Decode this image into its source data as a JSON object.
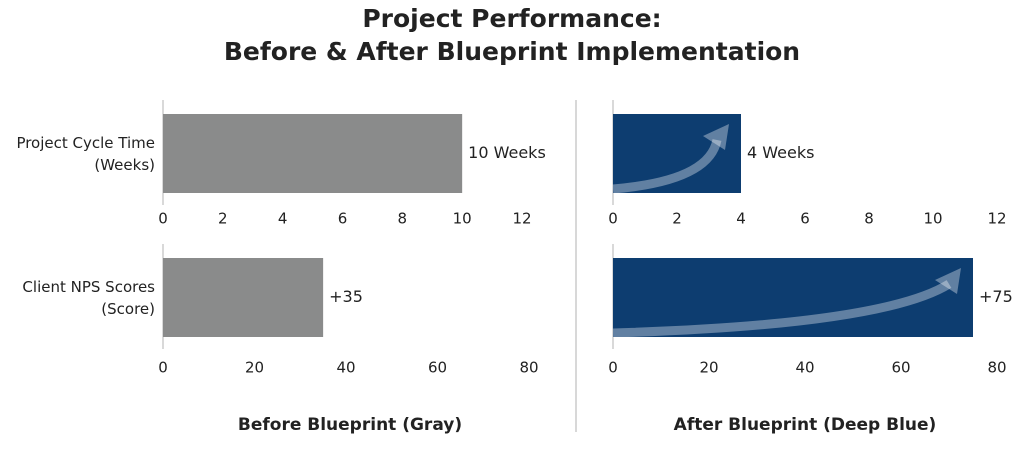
{
  "title": [
    "Project Performance:",
    "Before & After Blueprint Implementation"
  ],
  "chart_data": [
    {
      "type": "bar",
      "orientation": "horizontal",
      "categories": [
        "Project Cycle Time (Weeks)"
      ],
      "values": [
        10
      ],
      "value_labels": [
        "10 Weeks"
      ],
      "color": "#8a8b8b",
      "xlim": [
        0,
        12
      ],
      "xticks": [
        0,
        2,
        4,
        6,
        8,
        10,
        12
      ],
      "grid": false
    },
    {
      "type": "bar",
      "orientation": "horizontal",
      "categories": [
        null
      ],
      "values": [
        4
      ],
      "value_labels": [
        "4 Weeks"
      ],
      "color": "#0d3d70",
      "xlim": [
        0,
        12
      ],
      "xticks": [
        0,
        2,
        4,
        6,
        8,
        10,
        12
      ],
      "grid": false
    },
    {
      "type": "bar",
      "orientation": "horizontal",
      "categories": [
        "Client NPS Scores (Score)"
      ],
      "values": [
        35
      ],
      "value_labels": [
        "+35"
      ],
      "color": "#8a8b8b",
      "xlim": [
        0,
        80
      ],
      "xticks": [
        0,
        20,
        40,
        60,
        80
      ],
      "grid": false,
      "xlabel": "Before Blueprint (Gray)"
    },
    {
      "type": "bar",
      "orientation": "horizontal",
      "categories": [
        null
      ],
      "values": [
        75
      ],
      "value_labels": [
        "+75"
      ],
      "color": "#0d3d70",
      "xlim": [
        0,
        80
      ],
      "xticks": [
        0,
        20,
        40,
        60,
        80
      ],
      "grid": false,
      "xlabel": "After Blueprint (Deep Blue)"
    }
  ]
}
